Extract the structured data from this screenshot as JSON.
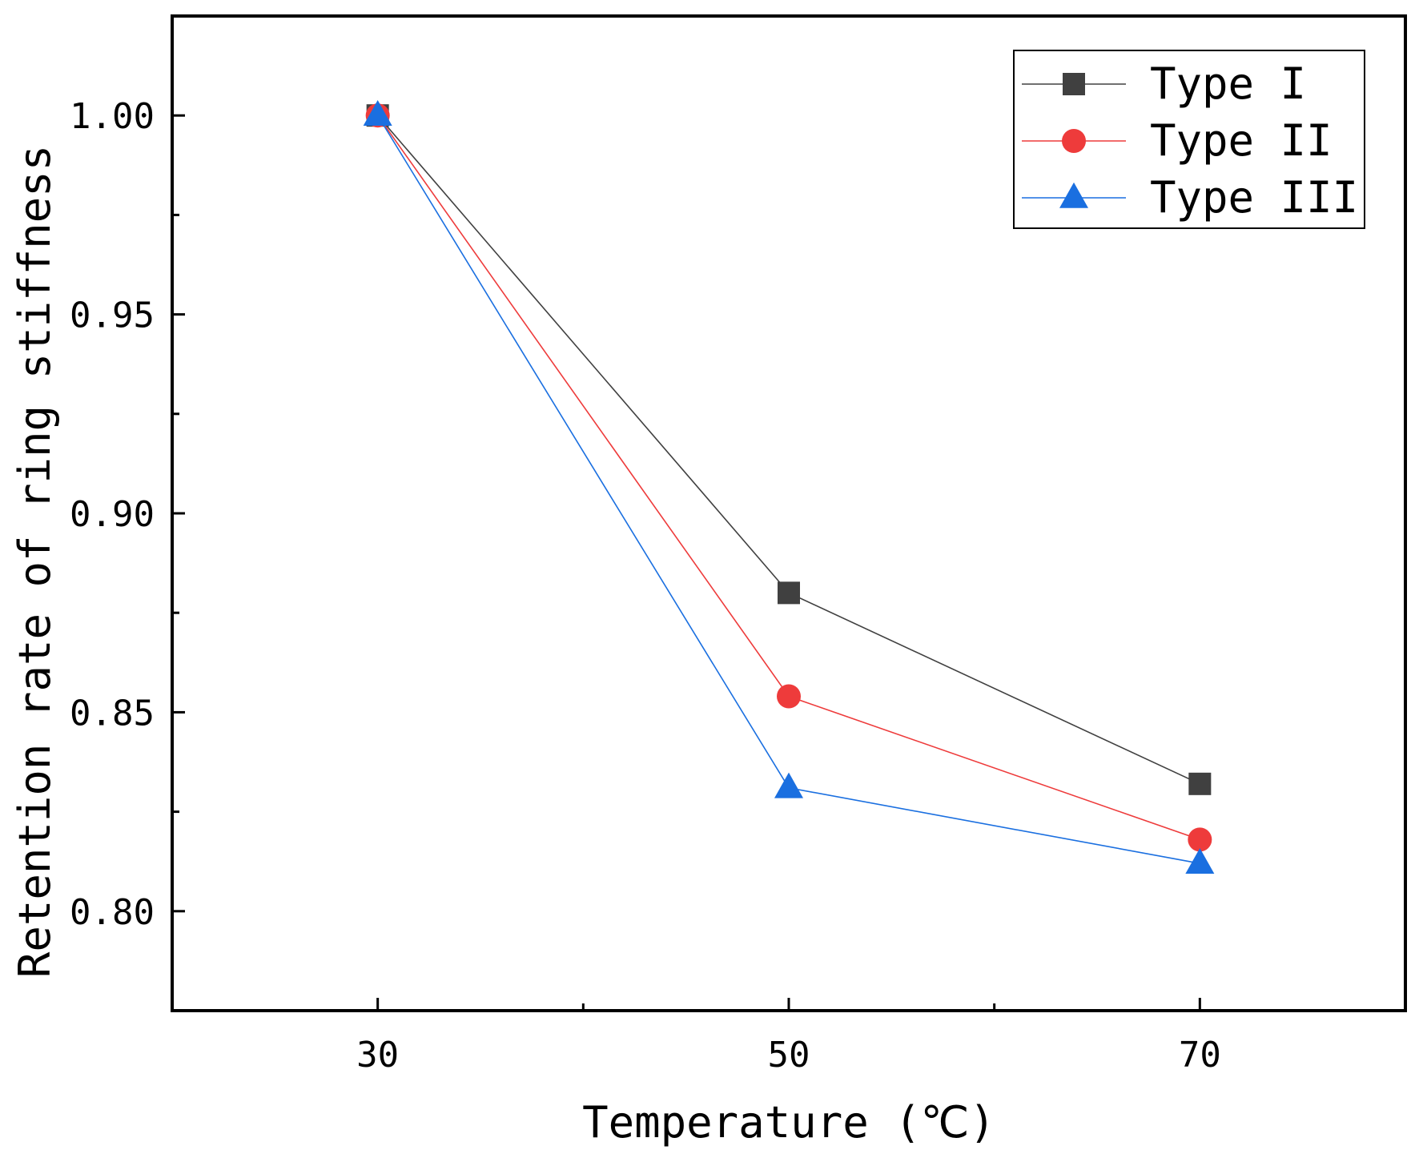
{
  "chart_data": {
    "type": "line",
    "title": "",
    "xlabel": "Temperature (℃)",
    "ylabel": "Retention rate of ring stiffness",
    "x": [
      30,
      50,
      70
    ],
    "xlim": [
      20,
      80
    ],
    "ylim": [
      0.775,
      1.025
    ],
    "xticks": [
      30,
      50,
      70
    ],
    "xticks_minor": [
      40,
      60
    ],
    "yticks": [
      0.8,
      0.85,
      0.9,
      0.95,
      1.0
    ],
    "yticks_minor": [
      0.825,
      0.875,
      0.925,
      0.975
    ],
    "ytick_labels": [
      "0.80",
      "0.85",
      "0.90",
      "0.95",
      "1.00"
    ],
    "xtick_labels": [
      "30",
      "50",
      "70"
    ],
    "grid": false,
    "legend_position": "top-right",
    "series": [
      {
        "name": "Type I",
        "values": [
          1.0,
          0.88,
          0.832
        ],
        "color": "#404040",
        "marker": "square"
      },
      {
        "name": "Type II",
        "values": [
          1.0,
          0.854,
          0.818
        ],
        "color": "#ee3b3b",
        "marker": "circle"
      },
      {
        "name": "Type III",
        "values": [
          1.0,
          0.831,
          0.812
        ],
        "color": "#1a6fe0",
        "marker": "triangle"
      }
    ]
  }
}
